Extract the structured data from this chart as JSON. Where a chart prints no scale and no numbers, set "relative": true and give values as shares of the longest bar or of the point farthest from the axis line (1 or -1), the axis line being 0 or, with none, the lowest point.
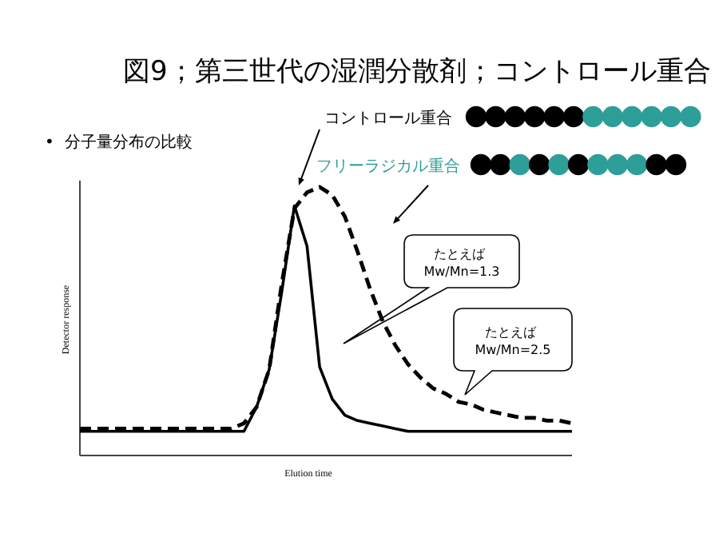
{
  "chart_data": {
    "type": "line",
    "relative": true,
    "title": "図9；第三世代の湿潤分散剤；コントロール重合",
    "subtitle": "•  分子量分布の比較",
    "legend": "top",
    "xlabel": "Elution time",
    "ylabel": "Detector response",
    "categories": [
      null,
      null,
      null,
      null,
      null,
      null,
      null,
      null,
      null,
      null,
      null,
      null,
      null,
      null,
      null,
      null,
      null,
      null,
      null,
      null,
      null,
      null,
      null,
      null,
      null,
      null,
      null,
      null,
      null,
      null,
      null,
      null,
      null,
      null,
      null,
      null,
      null,
      null,
      null,
      null
    ],
    "series": [
      {
        "name": "コントロール重合",
        "color": "#000000",
        "line_style": "solid",
        "values": [
          0.09,
          0.09,
          0.09,
          0.09,
          0.09,
          0.09,
          0.09,
          0.09,
          0.09,
          0.09,
          0.09,
          0.09,
          0.09,
          0.09,
          0.18,
          0.32,
          0.61,
          0.93,
          0.78,
          0.33,
          0.21,
          0.15,
          0.13,
          0.12,
          0.11,
          0.1,
          0.09,
          0.09,
          0.09,
          0.09,
          0.09,
          0.09,
          0.09,
          0.09,
          0.09,
          0.09,
          0.09,
          0.09,
          0.09,
          0.09
        ]
      },
      {
        "name": "フリーラジカル重合",
        "color": "#000000",
        "line_style": "dashed",
        "values": [
          0.1,
          0.1,
          0.1,
          0.1,
          0.1,
          0.1,
          0.1,
          0.1,
          0.1,
          0.1,
          0.1,
          0.1,
          0.1,
          0.12,
          0.18,
          0.32,
          0.64,
          0.92,
          0.98,
          1.0,
          0.97,
          0.89,
          0.76,
          0.62,
          0.5,
          0.41,
          0.34,
          0.29,
          0.25,
          0.23,
          0.2,
          0.19,
          0.17,
          0.16,
          0.15,
          0.14,
          0.14,
          0.13,
          0.13,
          0.12
        ]
      }
    ],
    "annotations": [
      "たとえば Mw/Mn=1.3",
      "たとえば Mw/Mn=2.5"
    ]
  }
}
